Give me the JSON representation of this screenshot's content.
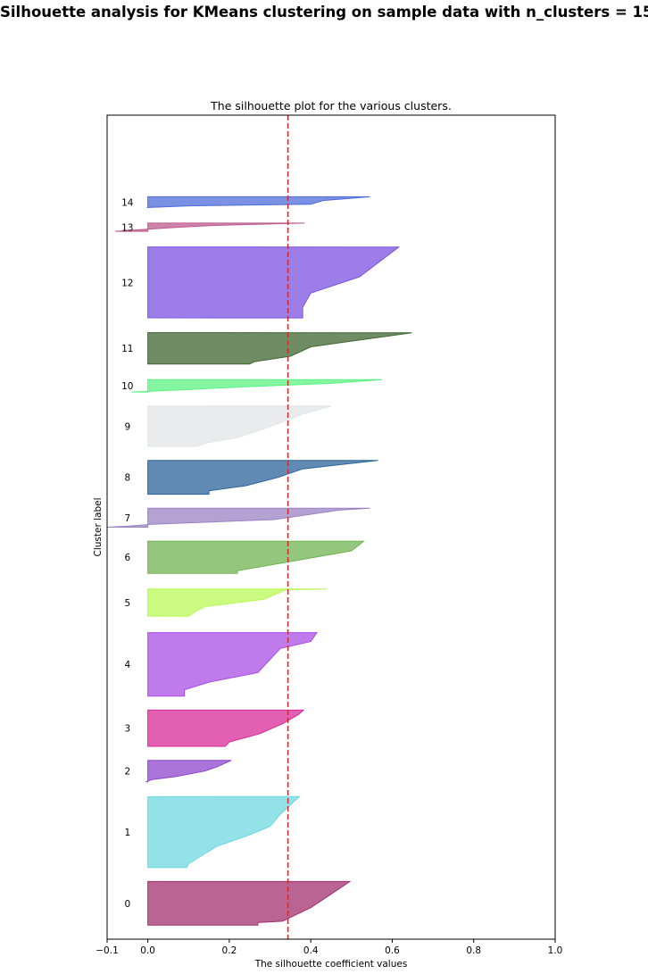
{
  "chart_data": {
    "type": "area",
    "suptitle": "Silhouette analysis for KMeans clustering on sample data with n_clusters = 15",
    "title": "The silhouette plot for the various clusters.",
    "xlabel": "The silhouette coefficient values",
    "ylabel": "Cluster label",
    "xlim": [
      -0.1,
      1.0
    ],
    "ylim": [
      0,
      100
    ],
    "xticks": [
      -0.1,
      0.0,
      0.2,
      0.4,
      0.6,
      0.8,
      1.0
    ],
    "xtick_labels": [
      "−0.1",
      "0.0",
      "0.2",
      "0.4",
      "0.6",
      "0.8",
      "1.0"
    ],
    "yticks": [],
    "grid": false,
    "legend": "none",
    "average_silhouette": 0.344,
    "average_line_color": "#d62728",
    "clusters": [
      {
        "label": "0",
        "color": "#a3306f",
        "y_lower": 1.7,
        "y_upper": 7.0,
        "profile": [
          [
            0.0,
            0.496
          ],
          [
            0.6,
            0.4
          ],
          [
            0.82,
            0.35
          ],
          [
            0.87,
            0.34
          ],
          [
            0.91,
            0.33
          ],
          [
            0.94,
            0.27
          ],
          [
            1.0,
            0.27
          ]
        ]
      },
      {
        "label": "1",
        "color": "#6dd8e0",
        "y_lower": 8.7,
        "y_upper": 17.3,
        "profile": [
          [
            0.0,
            0.372
          ],
          [
            0.25,
            0.325
          ],
          [
            0.42,
            0.3
          ],
          [
            0.55,
            0.245
          ],
          [
            0.7,
            0.17
          ],
          [
            0.84,
            0.13
          ],
          [
            0.95,
            0.1
          ],
          [
            1.0,
            0.095
          ]
        ]
      },
      {
        "label": "2",
        "color": "#8d45cd",
        "y_lower": 19.1,
        "y_upper": 21.7,
        "profile": [
          [
            0.0,
            0.205
          ],
          [
            0.3,
            0.17
          ],
          [
            0.5,
            0.14
          ],
          [
            0.75,
            0.07
          ],
          [
            0.9,
            0.01
          ],
          [
            1.0,
            -0.005
          ]
        ]
      },
      {
        "label": "3",
        "color": "#d82a98",
        "y_lower": 23.4,
        "y_upper": 27.8,
        "profile": [
          [
            0.0,
            0.382
          ],
          [
            0.12,
            0.37
          ],
          [
            0.38,
            0.33
          ],
          [
            0.65,
            0.275
          ],
          [
            0.88,
            0.2
          ],
          [
            1.0,
            0.19
          ]
        ]
      },
      {
        "label": "4",
        "color": "#aa4de6",
        "y_lower": 29.5,
        "y_upper": 37.2,
        "profile": [
          [
            0.0,
            0.415
          ],
          [
            0.14,
            0.4
          ],
          [
            0.25,
            0.325
          ],
          [
            0.63,
            0.27
          ],
          [
            0.78,
            0.15
          ],
          [
            0.9,
            0.09
          ],
          [
            1.0,
            0.09
          ]
        ]
      },
      {
        "label": "5",
        "color": "#b8fa55",
        "y_lower": 39.2,
        "y_upper": 42.5,
        "profile": [
          [
            0.0,
            0.44
          ],
          [
            0.03,
            0.34
          ],
          [
            0.38,
            0.285
          ],
          [
            0.65,
            0.14
          ],
          [
            0.8,
            0.12
          ],
          [
            1.0,
            0.1
          ]
        ]
      },
      {
        "label": "6",
        "color": "#71b351",
        "y_lower": 44.4,
        "y_upper": 48.3,
        "profile": [
          [
            0.0,
            0.53
          ],
          [
            0.3,
            0.5
          ],
          [
            0.7,
            0.32
          ],
          [
            0.92,
            0.22
          ],
          [
            1.0,
            0.22
          ]
        ]
      },
      {
        "label": "7",
        "color": "#9b83c3",
        "y_lower": 50.0,
        "y_upper": 52.3,
        "profile": [
          [
            0.0,
            0.545
          ],
          [
            0.1,
            0.47
          ],
          [
            0.6,
            0.31
          ],
          [
            0.85,
            0.01
          ],
          [
            0.95,
            -0.05
          ],
          [
            1.0,
            -0.1
          ]
        ]
      },
      {
        "label": "8",
        "color": "#2b639a",
        "y_lower": 54.0,
        "y_upper": 58.1,
        "profile": [
          [
            0.0,
            0.565
          ],
          [
            0.25,
            0.38
          ],
          [
            0.5,
            0.32
          ],
          [
            0.75,
            0.24
          ],
          [
            0.9,
            0.15
          ],
          [
            1.0,
            0.15
          ]
        ]
      },
      {
        "label": "9",
        "color": "#e3e4e6",
        "y_lower": 59.8,
        "y_upper": 64.7,
        "profile": [
          [
            0.0,
            0.45
          ],
          [
            0.2,
            0.38
          ],
          [
            0.55,
            0.29
          ],
          [
            0.78,
            0.22
          ],
          [
            0.9,
            0.15
          ],
          [
            1.0,
            0.12
          ]
        ]
      },
      {
        "label": "10",
        "color": "#5cf283",
        "y_lower": 66.4,
        "y_upper": 67.9,
        "profile": [
          [
            0.0,
            0.575
          ],
          [
            0.3,
            0.45
          ],
          [
            0.6,
            0.22
          ],
          [
            0.8,
            0.1
          ],
          [
            1.0,
            -0.04
          ]
        ]
      },
      {
        "label": "11",
        "color": "#3f6630",
        "y_lower": 69.8,
        "y_upper": 73.6,
        "profile": [
          [
            0.0,
            0.648
          ],
          [
            0.45,
            0.4
          ],
          [
            0.75,
            0.35
          ],
          [
            0.93,
            0.26
          ],
          [
            1.0,
            0.25
          ]
        ]
      },
      {
        "label": "12",
        "color": "#7c53e0",
        "y_lower": 75.4,
        "y_upper": 84.0,
        "profile": [
          [
            0.0,
            0.616
          ],
          [
            0.42,
            0.52
          ],
          [
            0.65,
            0.4
          ],
          [
            0.85,
            0.38
          ],
          [
            1.0,
            0.38
          ]
        ]
      },
      {
        "label": "13",
        "color": "#be5a8e",
        "y_lower": 85.9,
        "y_upper": 86.9,
        "profile": [
          [
            0.0,
            0.385
          ],
          [
            0.3,
            0.15
          ],
          [
            0.55,
            0.06
          ],
          [
            0.8,
            -0.02
          ],
          [
            1.0,
            -0.08
          ]
        ]
      },
      {
        "label": "14",
        "color": "#4d6bd9",
        "y_lower": 88.8,
        "y_upper": 90.1,
        "profile": [
          [
            0.0,
            0.545
          ],
          [
            0.35,
            0.43
          ],
          [
            0.7,
            0.4
          ],
          [
            0.85,
            0.1
          ],
          [
            1.0,
            0.0
          ]
        ]
      }
    ]
  }
}
